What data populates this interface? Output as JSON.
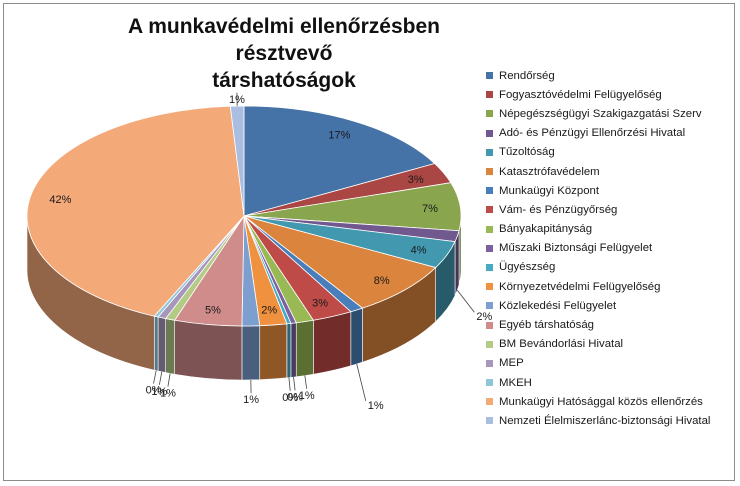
{
  "chart_data": {
    "type": "pie",
    "title_line1": "A munkavédelmi ellenőrzésben résztvevő",
    "title_line2": "társhatóságok",
    "legend_position": "right",
    "slices": [
      {
        "name": "Rendőrség",
        "value": 17,
        "label": "17%",
        "color": "#4572A7"
      },
      {
        "name": "Fogyasztóvédelmi Felügyelőség",
        "value": 3,
        "label": "3%",
        "color": "#AA4643"
      },
      {
        "name": "Népegészségügyi Szakigazgatási Szerv",
        "value": 7,
        "label": "7%",
        "color": "#89A54E"
      },
      {
        "name": "Adó- és Pénzügyi Ellenőrzési Hivatal",
        "value": 1.6,
        "label": "",
        "color": "#71588F"
      },
      {
        "name": "Tűzoltóság",
        "value": 4,
        "label": "4%",
        "color": "#4198AF"
      },
      {
        "name": "Katasztrófavédelem",
        "value": 8,
        "label": "8%",
        "color": "#DB843D"
      },
      {
        "name": "Munkaügyi Központ",
        "value": 1,
        "label": "",
        "color": "#4A7EBB"
      },
      {
        "name": "Vám- és Pénzügyőrség",
        "value": 3,
        "label": "3%",
        "color": "#BE4B48"
      },
      {
        "name": "Bányakapitányság",
        "value": 1.3,
        "label": "1%",
        "color": "#98B954"
      },
      {
        "name": "Műszaki Biztonsági Felügyelet",
        "value": 0.4,
        "label": "0%",
        "color": "#7D60A0"
      },
      {
        "name": "Ügyészség",
        "value": 0.3,
        "label": "0%",
        "color": "#46AAC5"
      },
      {
        "name": "Környezetvédelmi Felügyelőség",
        "value": 2,
        "label": "2%",
        "color": "#F0913F"
      },
      {
        "name": "Közlekedési Felügyelet",
        "value": 1.3,
        "label": "1%",
        "color": "#7C9FCF"
      },
      {
        "name": "Egyéb társhatóság",
        "value": 5,
        "label": "5%",
        "color": "#D08C8B"
      },
      {
        "name": "BM Bevándorlási Hivatal",
        "value": 0.7,
        "label": "1%",
        "color": "#B3CB85"
      },
      {
        "name": "MEP",
        "value": 0.6,
        "label": "1%",
        "color": "#A796BC"
      },
      {
        "name": "MKEH",
        "value": 0.3,
        "label": "0%",
        "color": "#8FC6DA"
      },
      {
        "name": "Munkaügyi Hatósággal közös ellenőrzés",
        "value": 42,
        "label": "42%",
        "color": "#F4A979"
      },
      {
        "name": "Nemzeti Élelmiszerlánc-biztonsági Hivatal",
        "value": 1,
        "label": "1%",
        "color": "#A9BEE0"
      }
    ],
    "outer_labels": [
      {
        "text": "2%",
        "slice": "Adó- és Pénzügyi Ellenőrzési Hivatal"
      },
      {
        "text": "1%",
        "slice": "Munkaügyi Központ"
      }
    ]
  }
}
